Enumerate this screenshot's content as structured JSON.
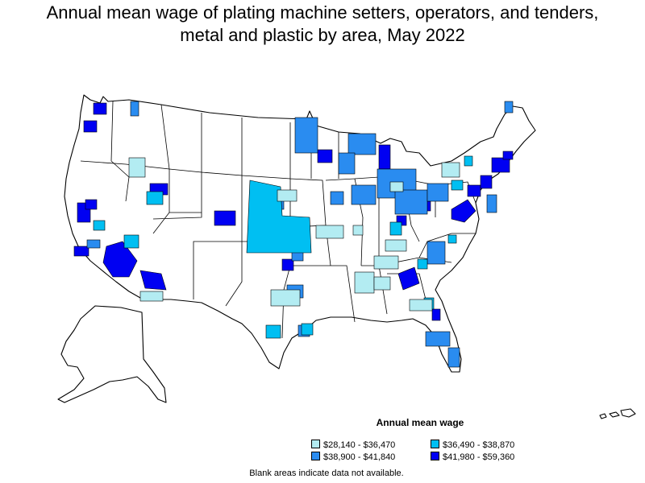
{
  "title_line1": "Annual mean wage of plating machine setters, operators, and tenders,",
  "title_line2": "metal and plastic by area, May 2022",
  "legend": {
    "title": "Annual mean wage",
    "items": [
      {
        "label": "$28,140 - $36,470",
        "color": "#b3ecf2"
      },
      {
        "label": "$36,490 - $38,870",
        "color": "#00bff2"
      },
      {
        "label": "$38,900 - $41,840",
        "color": "#2a8cf0"
      },
      {
        "label": "$41,980 - $59,360",
        "color": "#0000f2"
      }
    ]
  },
  "note": "Blank areas indicate data not available.",
  "colors": {
    "border": "#000000",
    "land": "#ffffff"
  }
}
